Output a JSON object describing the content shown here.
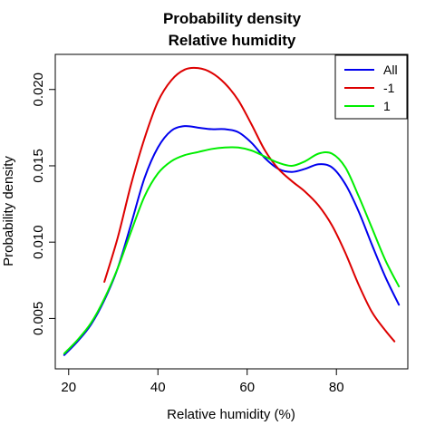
{
  "chart_data": {
    "type": "line",
    "title": "Probability density",
    "subtitle": "Relative humidity",
    "xlabel": "Relative humidity (%)",
    "ylabel": "Probability density",
    "xlim": [
      17,
      96
    ],
    "ylim": [
      0.0017,
      0.0223
    ],
    "xticks": [
      20,
      40,
      60,
      80
    ],
    "xtick_labels": [
      "20",
      "40",
      "60",
      "80"
    ],
    "yticks": [
      0.005,
      0.01,
      0.015,
      0.02
    ],
    "ytick_labels": [
      "0.005",
      "0.010",
      "0.015",
      "0.020"
    ],
    "grid": false,
    "legend_position": "top-right",
    "series": [
      {
        "name": "All",
        "color": "#0000ee",
        "x": [
          19,
          22,
          25,
          28,
          31,
          34,
          37,
          40,
          43,
          46,
          49,
          52,
          55,
          58,
          61,
          64,
          67,
          70,
          73,
          76,
          79,
          82,
          85,
          88,
          91,
          94
        ],
        "y": [
          0.0026,
          0.0035,
          0.0046,
          0.0062,
          0.0083,
          0.0112,
          0.0142,
          0.0162,
          0.0173,
          0.0176,
          0.0175,
          0.0174,
          0.0174,
          0.0172,
          0.0165,
          0.0155,
          0.0148,
          0.0146,
          0.0148,
          0.0151,
          0.0149,
          0.0138,
          0.012,
          0.0098,
          0.0077,
          0.0059
        ]
      },
      {
        "name": "-1",
        "color": "#dd0000",
        "x": [
          28,
          31,
          34,
          37,
          40,
          43,
          46,
          49,
          52,
          55,
          58,
          61,
          64,
          67,
          70,
          73,
          76,
          79,
          82,
          85,
          88,
          91,
          93
        ],
        "y": [
          0.0074,
          0.0103,
          0.0138,
          0.0168,
          0.0192,
          0.0206,
          0.0213,
          0.0214,
          0.0211,
          0.0204,
          0.0193,
          0.0177,
          0.016,
          0.0148,
          0.014,
          0.0133,
          0.0124,
          0.0111,
          0.0093,
          0.0072,
          0.0054,
          0.0042,
          0.0035
        ]
      },
      {
        "name": "1",
        "color": "#00ee00",
        "x": [
          19,
          22,
          25,
          28,
          31,
          34,
          37,
          40,
          43,
          46,
          49,
          52,
          55,
          58,
          61,
          64,
          67,
          70,
          73,
          76,
          79,
          82,
          85,
          88,
          91,
          94
        ],
        "y": [
          0.0027,
          0.0036,
          0.0047,
          0.0063,
          0.0083,
          0.0107,
          0.013,
          0.0145,
          0.0153,
          0.0157,
          0.0159,
          0.0161,
          0.0162,
          0.0162,
          0.016,
          0.0156,
          0.0152,
          0.015,
          0.0153,
          0.0158,
          0.0158,
          0.0149,
          0.013,
          0.0109,
          0.0088,
          0.0071
        ]
      }
    ]
  }
}
